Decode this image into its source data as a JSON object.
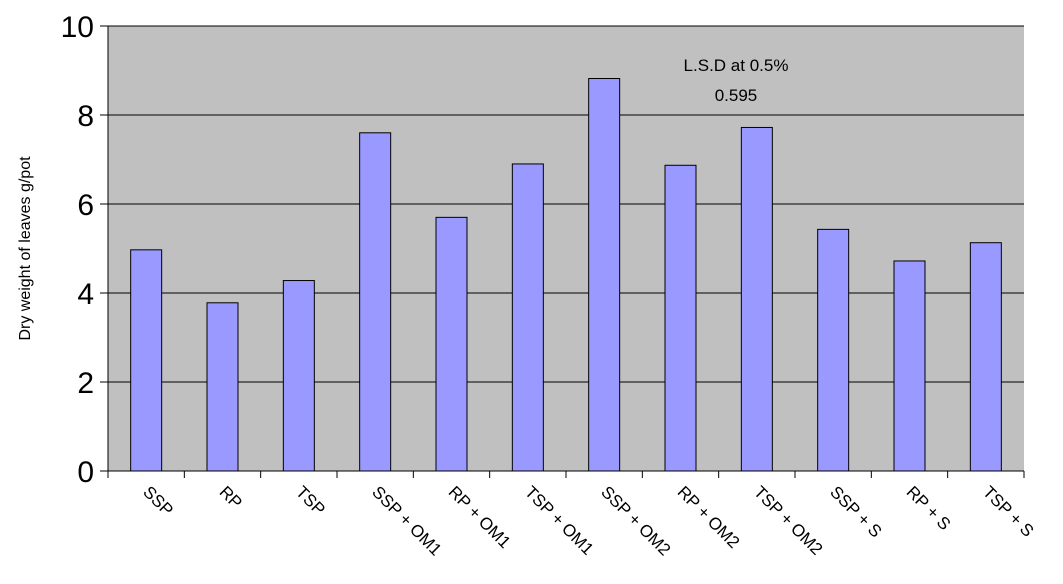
{
  "chart_data": {
    "type": "bar",
    "ylabel": "Dry weight of leaves g/pot",
    "xlabel": "",
    "ylim": [
      0,
      10
    ],
    "yticks": [
      "0",
      "2",
      "4",
      "6",
      "8",
      "10"
    ],
    "grid": true,
    "categories": [
      "SSP",
      "RP",
      "TSP",
      "SSP + OM1",
      "RP + OM1",
      "TSP + OM1",
      "SSP + OM2",
      "RP + OM2",
      "TSP + OM2",
      "SSP + S",
      "RP + S",
      "TSP + S"
    ],
    "values": [
      4.97,
      3.78,
      4.28,
      7.6,
      5.7,
      6.9,
      8.82,
      6.87,
      7.72,
      5.43,
      4.72,
      5.13
    ],
    "annotation": {
      "line1": "L.S.D at 0.5%",
      "line2": "0.595"
    },
    "colors": {
      "plot_bg": "#c0c0c0",
      "bar_fill": "#9999ff",
      "bar_stroke": "#000000",
      "gridline": "#000000"
    }
  }
}
